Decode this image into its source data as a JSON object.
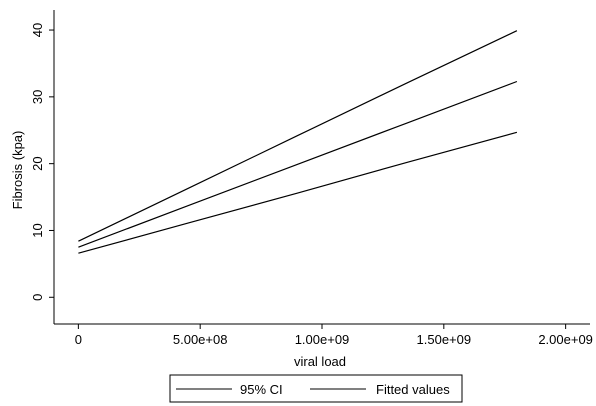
{
  "chart_data": {
    "type": "line",
    "xlabel": "viral load",
    "ylabel": "Fibrosis (kpa)",
    "xlim": [
      -100000000,
      2100000000
    ],
    "ylim": [
      -4,
      43
    ],
    "x_ticks": [
      0,
      500000000,
      1000000000,
      1500000000,
      2000000000
    ],
    "x_tick_labels": [
      "0",
      "5.00e+08",
      "1.00e+09",
      "1.50e+09",
      "2.00e+09"
    ],
    "y_ticks": [
      0,
      10,
      20,
      30,
      40
    ],
    "y_tick_labels": [
      "0",
      "10",
      "20",
      "30",
      "40"
    ],
    "grid": false,
    "legend_position": "bottom",
    "series": [
      {
        "name": "95% CI",
        "role": "upper",
        "x": [
          0,
          450000000,
          900000000,
          1350000000,
          1800000000
        ],
        "y": [
          8.4,
          16.3,
          24.2,
          32.1,
          39.9
        ]
      },
      {
        "name": "Fitted values",
        "role": "fit",
        "x": [
          0,
          450000000,
          900000000,
          1350000000,
          1800000000
        ],
        "y": [
          7.5,
          13.7,
          19.9,
          26.1,
          32.3
        ]
      },
      {
        "name": "95% CI",
        "role": "lower",
        "x": [
          0,
          450000000,
          900000000,
          1350000000,
          1800000000
        ],
        "y": [
          6.6,
          11.1,
          15.6,
          20.2,
          24.7
        ]
      }
    ],
    "legend_entries": [
      "95% CI",
      "Fitted values"
    ]
  }
}
